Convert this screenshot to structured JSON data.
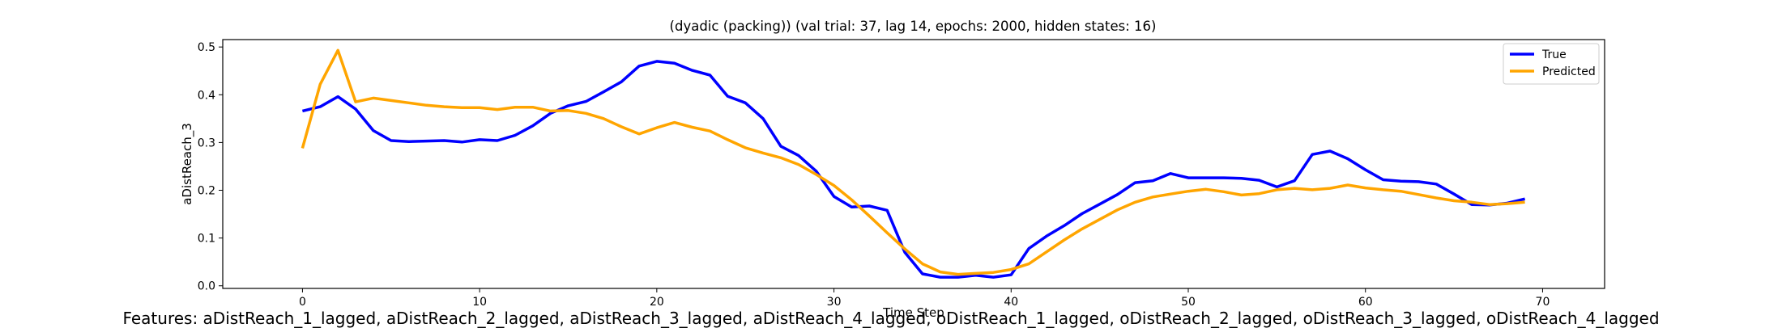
{
  "chart_data": {
    "type": "line",
    "title": "(dyadic (packing)) (val trial: 37, lag 14, epochs: 2000, hidden states: 16)",
    "xlabel": "Time Step",
    "ylabel": "aDistReach_3",
    "xlim": [
      -4.5,
      73.5
    ],
    "ylim": [
      -0.0055,
      0.5155
    ],
    "xticks": [
      0,
      10,
      20,
      30,
      40,
      50,
      60,
      70
    ],
    "yticks": [
      0.0,
      0.1,
      0.2,
      0.3,
      0.4,
      0.5
    ],
    "ytick_labels": [
      "0.0",
      "0.1",
      "0.2",
      "0.3",
      "0.4",
      "0.5"
    ],
    "grid": false,
    "legend_position": "top-right",
    "series": [
      {
        "name": "True",
        "color": "#0000ff",
        "x": [
          0,
          1,
          2,
          3,
          4,
          5,
          6,
          7,
          8,
          9,
          10,
          11,
          12,
          13,
          14,
          15,
          16,
          17,
          18,
          19,
          20,
          21,
          22,
          23,
          24,
          25,
          26,
          27,
          28,
          29,
          30,
          31,
          32,
          33,
          34,
          35,
          36,
          37,
          38,
          39,
          40,
          41,
          42,
          43,
          44,
          45,
          46,
          47,
          48,
          49,
          50,
          51,
          52,
          53,
          54,
          55,
          56,
          57,
          58,
          59,
          60,
          61,
          62,
          63,
          64,
          65,
          66,
          67,
          68,
          69
        ],
        "values": [
          0.366,
          0.375,
          0.396,
          0.37,
          0.325,
          0.304,
          0.302,
          0.303,
          0.304,
          0.301,
          0.306,
          0.304,
          0.315,
          0.335,
          0.361,
          0.377,
          0.386,
          0.406,
          0.427,
          0.46,
          0.47,
          0.466,
          0.451,
          0.441,
          0.397,
          0.383,
          0.35,
          0.292,
          0.273,
          0.24,
          0.187,
          0.165,
          0.167,
          0.158,
          0.07,
          0.025,
          0.018,
          0.018,
          0.022,
          0.018,
          0.023,
          0.078,
          0.104,
          0.126,
          0.151,
          0.171,
          0.191,
          0.216,
          0.22,
          0.235,
          0.226,
          0.226,
          0.226,
          0.225,
          0.221,
          0.207,
          0.22,
          0.275,
          0.282,
          0.266,
          0.243,
          0.222,
          0.219,
          0.218,
          0.213,
          0.192,
          0.17,
          0.169,
          0.173,
          0.182
        ]
      },
      {
        "name": "Predicted",
        "color": "#ffa500",
        "x": [
          0,
          1,
          2,
          3,
          4,
          5,
          6,
          7,
          8,
          9,
          10,
          11,
          12,
          13,
          14,
          15,
          16,
          17,
          18,
          19,
          20,
          21,
          22,
          23,
          24,
          25,
          26,
          27,
          28,
          29,
          30,
          31,
          32,
          33,
          34,
          35,
          36,
          37,
          38,
          39,
          40,
          41,
          42,
          43,
          44,
          45,
          46,
          47,
          48,
          49,
          50,
          51,
          52,
          53,
          54,
          55,
          56,
          57,
          58,
          59,
          60,
          61,
          62,
          63,
          64,
          65,
          66,
          67,
          68,
          69
        ],
        "values": [
          0.288,
          0.422,
          0.493,
          0.385,
          0.393,
          0.388,
          0.383,
          0.378,
          0.375,
          0.373,
          0.373,
          0.369,
          0.374,
          0.374,
          0.366,
          0.367,
          0.361,
          0.35,
          0.333,
          0.318,
          0.331,
          0.342,
          0.332,
          0.324,
          0.306,
          0.289,
          0.278,
          0.268,
          0.254,
          0.233,
          0.21,
          0.18,
          0.146,
          0.111,
          0.077,
          0.046,
          0.029,
          0.024,
          0.026,
          0.028,
          0.034,
          0.046,
          0.071,
          0.096,
          0.119,
          0.139,
          0.159,
          0.175,
          0.186,
          0.192,
          0.198,
          0.202,
          0.197,
          0.19,
          0.193,
          0.201,
          0.204,
          0.201,
          0.204,
          0.211,
          0.205,
          0.201,
          0.198,
          0.191,
          0.184,
          0.178,
          0.175,
          0.17,
          0.172,
          0.175
        ]
      }
    ]
  },
  "footnote": "Features: aDistReach_1_lagged, aDistReach_2_lagged, aDistReach_3_lagged, aDistReach_4_lagged, oDistReach_1_lagged, oDistReach_2_lagged, oDistReach_3_lagged, oDistReach_4_lagged"
}
